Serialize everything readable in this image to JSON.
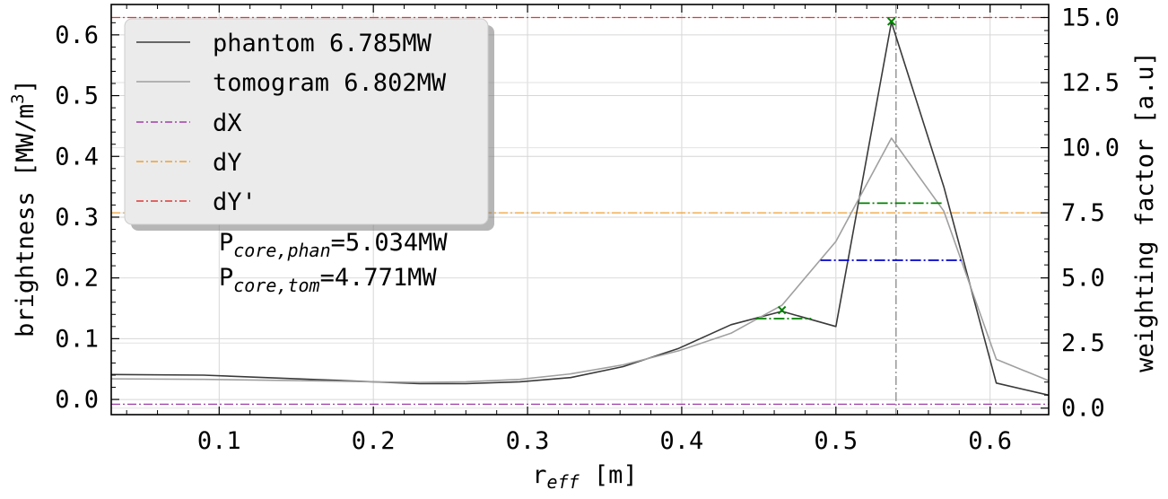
{
  "chart_data": {
    "type": "line",
    "xlabel": "r",
    "xlabel_sub": "eff",
    "xlabel_unit": " [m]",
    "ylabel": "brightness [MW/m",
    "ylabel_sup": "3",
    "ylabel_end": "]",
    "y2label": "weighting factor [a.u]",
    "xlim": [
      0.03,
      0.638
    ],
    "ylim": [
      -0.025,
      0.65
    ],
    "y2lim": [
      -0.25,
      15.5
    ],
    "xticks": [
      "0.1",
      "0.2",
      "0.3",
      "0.4",
      "0.5",
      "0.6"
    ],
    "yticks": [
      "0.0",
      "0.1",
      "0.2",
      "0.3",
      "0.4",
      "0.5",
      "0.6"
    ],
    "y2ticks": [
      "0.0",
      "2.5",
      "5.0",
      "7.5",
      "10.0",
      "12.5",
      "15.0"
    ],
    "grid": true,
    "legend_position": "upper-left",
    "series": [
      {
        "name": "phantom 6.785MW",
        "color": "#3a3a3a",
        "x": [
          0.03,
          0.09,
          0.15,
          0.2,
          0.23,
          0.26,
          0.295,
          0.328,
          0.362,
          0.398,
          0.432,
          0.465,
          0.5,
          0.536,
          0.57,
          0.604,
          0.638
        ],
        "y": [
          0.041,
          0.04,
          0.034,
          0.029,
          0.026,
          0.026,
          0.029,
          0.036,
          0.054,
          0.084,
          0.123,
          0.145,
          0.12,
          0.621,
          0.35,
          0.027,
          0.007
        ]
      },
      {
        "name": "tomogram 6.802MW",
        "color": "#a0a0a0",
        "x": [
          0.03,
          0.09,
          0.15,
          0.2,
          0.23,
          0.26,
          0.295,
          0.328,
          0.362,
          0.398,
          0.432,
          0.465,
          0.5,
          0.536,
          0.57,
          0.604,
          0.638
        ],
        "y": [
          0.034,
          0.033,
          0.031,
          0.029,
          0.028,
          0.029,
          0.033,
          0.042,
          0.057,
          0.08,
          0.109,
          0.155,
          0.26,
          0.43,
          0.31,
          0.066,
          0.031
        ]
      }
    ],
    "reference_lines": [
      {
        "name": "dX",
        "color": "#a040a8",
        "y2": 0.15
      },
      {
        "name": "dY",
        "color": "#f0a030",
        "y2": 7.5
      },
      {
        "name": "dY'",
        "color": "#e03838",
        "y2": 15.0
      }
    ],
    "vertical_line": {
      "x": 0.539,
      "color": "#888888"
    },
    "markers": [
      {
        "x": 0.465,
        "y": 0.147,
        "color": "#008000"
      },
      {
        "x": 0.536,
        "y": 0.622,
        "color": "#008000"
      }
    ],
    "segments": [
      {
        "x0": 0.448,
        "x1": 0.484,
        "y": 0.133,
        "color": "#008000"
      },
      {
        "x0": 0.49,
        "x1": 0.583,
        "y": 0.229,
        "color": "#0000cc"
      },
      {
        "x0": 0.515,
        "x1": 0.57,
        "y": 0.323,
        "color": "#008000"
      }
    ],
    "annotations": [
      {
        "label": "P",
        "sub": "core,phan",
        "value": "=5.034MW"
      },
      {
        "label": "P",
        "sub": "core,tom",
        "value": "=4.771MW"
      }
    ]
  }
}
